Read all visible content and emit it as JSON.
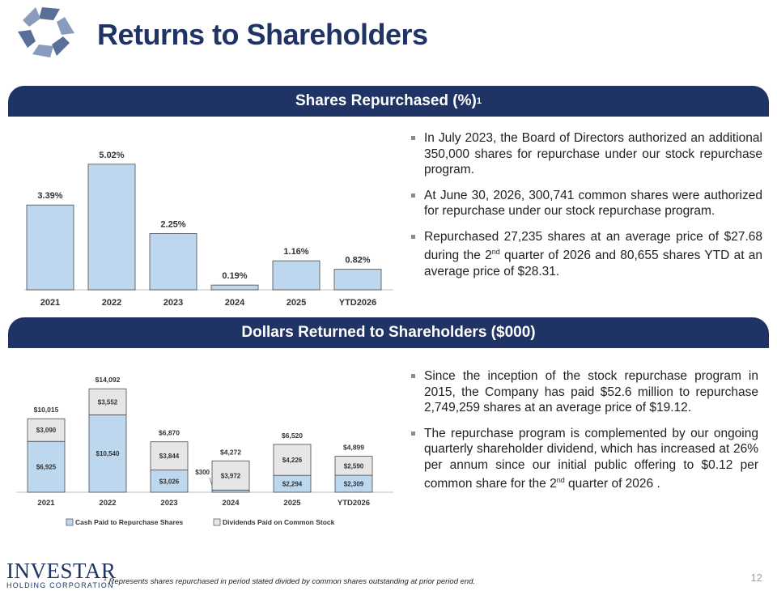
{
  "title": "Returns to Shareholders",
  "section1": {
    "heading": "Shares Repurchased (%)",
    "heading_sup": "1"
  },
  "section2": {
    "heading": "Dollars Returned to Shareholders ($000)"
  },
  "bullets1": [
    {
      "text": "In July 2023, the Board of Directors authorized an additional 350,000 shares for repurchase under our stock repurchase program."
    },
    {
      "text": "At June 30, 2026, 300,741 common shares were authorized for repurchase under our stock repurchase program."
    },
    {
      "pre": "Repurchased 27,235 shares at an average price of $27.68 during the 2",
      "sup": "nd",
      "post": " quarter of 2026 and 80,655 shares YTD at an average price of $28.31."
    }
  ],
  "bullets2": [
    {
      "text": "Since the inception of the stock repurchase program in 2015, the Company has paid $52.6 million to repurchase 2,749,259 shares at an average price of $19.12."
    },
    {
      "pre": "The repurchase program is complemented by our ongoing quarterly shareholder dividend, which has increased at 26% per annum since our initial public offering to $0.12 per common share for the 2",
      "sup": "nd",
      "post": " quarter of 2026 ."
    }
  ],
  "footer": {
    "logo_text": "INVESTAR",
    "logo_sub": "HOLDING CORPORATION",
    "footnote_sup": "1",
    "footnote": " Represents shares repurchased in period stated divided by common shares outstanding at prior period end.",
    "page_number": "12"
  },
  "colors": {
    "navy": "#1f3364",
    "bar_blue": "#bdd7ee",
    "bar_gray": "#e6e6e6",
    "axis": "#bfbfbf"
  },
  "chart_data": [
    {
      "type": "bar",
      "categories": [
        "2021",
        "2022",
        "2023",
        "2024",
        "2025",
        "YTD2026"
      ],
      "values": [
        3.39,
        5.02,
        2.25,
        0.19,
        1.16,
        0.82
      ],
      "labels": [
        "3.39%",
        "5.02%",
        "2.25%",
        "0.19%",
        "1.16%",
        "0.82%"
      ],
      "title": "Shares Repurchased (%)",
      "ylim": [
        0,
        5.5
      ]
    },
    {
      "type": "bar",
      "stacked": true,
      "categories": [
        "2021",
        "2022",
        "2023",
        "2024",
        "2025",
        "YTD2026"
      ],
      "series": [
        {
          "name": "Cash Paid to Repurchase Shares",
          "values": [
            6925,
            10540,
            3026,
            300,
            2294,
            2309
          ],
          "labels": [
            "$6,925",
            "$10,540",
            "$3,026",
            "$300",
            "$2,294",
            "$2,309"
          ]
        },
        {
          "name": "Dividends Paid on Common Stock",
          "values": [
            3090,
            3552,
            3844,
            3972,
            4226,
            2590
          ],
          "labels": [
            "$3,090",
            "$3,552",
            "$3,844",
            "$3,972",
            "$4,226",
            "$2,590"
          ]
        }
      ],
      "totals": [
        "$10,015",
        "$14,092",
        "$6,870",
        "$4,272",
        "$6,520",
        "$4,899"
      ],
      "title": "Dollars Returned to Shareholders ($000)",
      "legend": "bottom",
      "ylim": [
        0,
        15000
      ]
    }
  ]
}
